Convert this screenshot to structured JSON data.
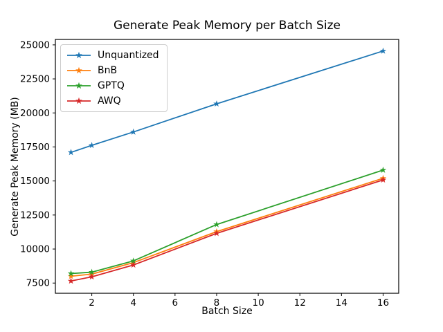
{
  "chart_data": {
    "type": "line",
    "title": "Generate Peak Memory per Batch Size",
    "xlabel": "Batch Size",
    "ylabel": "Generate Peak Memory (MB)",
    "x": [
      1,
      2,
      4,
      8,
      16
    ],
    "series": [
      {
        "name": "Unquantized",
        "color": "#1f77b4",
        "values": [
          17100,
          17620,
          18600,
          20670,
          24550
        ]
      },
      {
        "name": "BnB",
        "color": "#ff7f0e",
        "values": [
          8000,
          8160,
          9000,
          11280,
          15200
        ]
      },
      {
        "name": "GPTQ",
        "color": "#2ca02c",
        "values": [
          8200,
          8300,
          9130,
          11800,
          15800
        ]
      },
      {
        "name": "AWQ",
        "color": "#d62728",
        "values": [
          7650,
          7960,
          8830,
          11150,
          15080
        ]
      }
    ],
    "marker": "star",
    "xticks": [
      2,
      4,
      6,
      8,
      10,
      12,
      14,
      16
    ],
    "yticks": [
      7500,
      10000,
      12500,
      15000,
      17500,
      20000,
      22500,
      25000
    ],
    "xlim": [
      0.25,
      16.75
    ],
    "ylim": [
      6750,
      25400
    ],
    "grid": false,
    "legend_position": "upper left",
    "background": "#ffffff",
    "axis_color": "#000000"
  }
}
